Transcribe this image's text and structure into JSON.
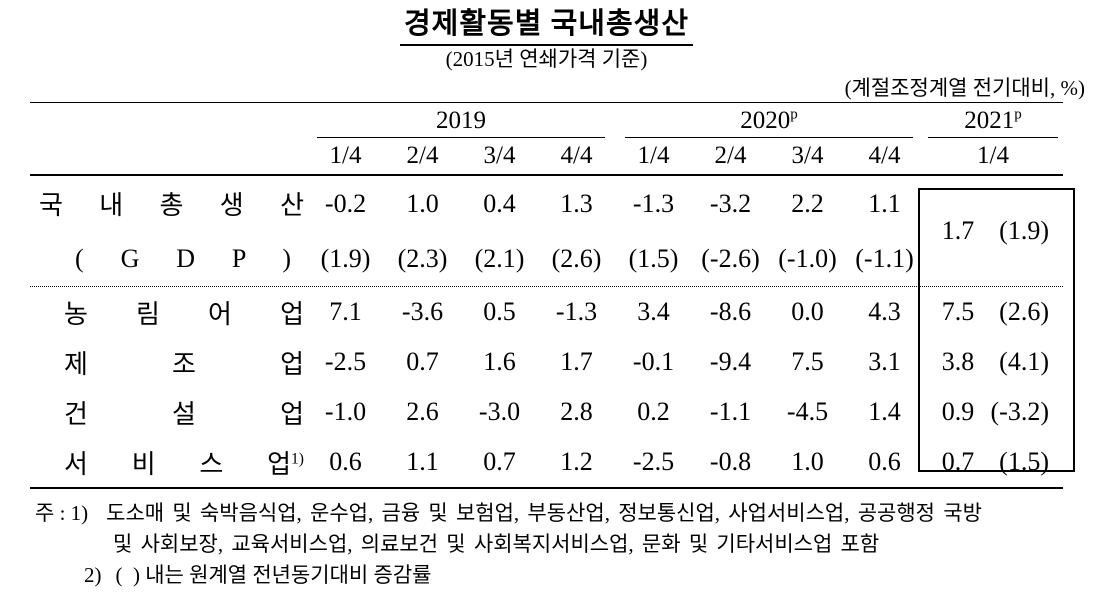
{
  "doc": {
    "title": "경제활동별 국내총생산",
    "subtitle": "(2015년 연쇄가격 기준)",
    "unit_note": "(계절조정계열 전기대비, %)"
  },
  "table": {
    "years": {
      "y2019": {
        "label": "2019",
        "sup": ""
      },
      "y2020": {
        "label": "2020",
        "sup": "p"
      },
      "y2021": {
        "label": "2021",
        "sup": "p"
      }
    },
    "quarters": {
      "q1": "1/4",
      "q2": "2/4",
      "q3": "3/4",
      "q4": "4/4",
      "q5": "1/4",
      "q6": "2/4",
      "q7": "3/4",
      "q8": "4/4",
      "q9": "1/4"
    },
    "gdp": {
      "label": "국 내 총 생 산",
      "label2": "( G D P )",
      "qoq": [
        "-0.2",
        "1.0",
        "0.4",
        "1.3",
        "-1.3",
        "-3.2",
        "2.2",
        "1.1"
      ],
      "yoy": [
        "(1.9)",
        "(2.3)",
        "(2.1)",
        "(2.6)",
        "(1.5)",
        "(-2.6)",
        "(-1.0)",
        "(-1.1)"
      ],
      "v2021": "1.7",
      "p2021": "(1.9)"
    },
    "rows": [
      {
        "label": "농 림 어 업",
        "sup": "",
        "cells": [
          "7.1",
          "-3.6",
          "0.5",
          "-1.3",
          "3.4",
          "-8.6",
          "0.0",
          "4.3"
        ],
        "v2021": "7.5",
        "p2021": "(2.6)"
      },
      {
        "label": "제 조 업",
        "sup": "",
        "cells": [
          "-2.5",
          "0.7",
          "1.6",
          "1.7",
          "-0.1",
          "-9.4",
          "7.5",
          "3.1"
        ],
        "v2021": "3.8",
        "p2021": "(4.1)"
      },
      {
        "label": "건 설 업",
        "sup": "",
        "cells": [
          "-1.0",
          "2.6",
          "-3.0",
          "2.8",
          "0.2",
          "-1.1",
          "-4.5",
          "1.4"
        ],
        "v2021": "0.9",
        "p2021": "(-3.2)"
      },
      {
        "label": "서 비 스 업",
        "sup": "1)",
        "cells": [
          "0.6",
          "1.1",
          "0.7",
          "1.2",
          "-2.5",
          "-0.8",
          "1.0",
          "0.6"
        ],
        "v2021": "0.7",
        "p2021": "(1.5)"
      }
    ]
  },
  "footnotes": {
    "note1_prefix": "주 : 1)",
    "note1_line1": "도소매 및 숙박음식업, 운수업, 금융 및 보험업, 부동산업, 정보통신업, 사업서비스업, 공공행정 국방",
    "note1_line2": "및 사회보장, 교육서비스업, 의료보건 및 사회복지서비스업, 문화 및 기타서비스업 포함",
    "note2_prefix": "2)",
    "note2_text": "(  ) 내는 원계열 전년동기대비 증감률"
  }
}
